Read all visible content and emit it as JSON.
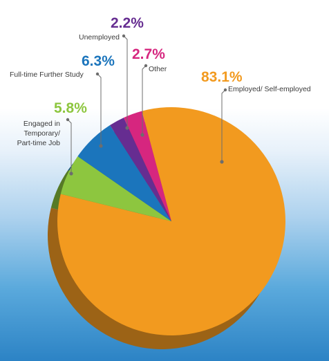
{
  "chart_data": {
    "type": "pie",
    "slices": [
      {
        "key": "employed",
        "label": "Employed/ Self-employed",
        "value": 83.1,
        "display": "83.1%",
        "color": "#f29a1f",
        "shade": "#9c6316"
      },
      {
        "key": "temporary",
        "label_lines": [
          "Engaged in",
          "Temporary/",
          "Part-time Job"
        ],
        "value": 5.8,
        "display": "5.8%",
        "color": "#8dc63f",
        "shade": "#567a26"
      },
      {
        "key": "further_study",
        "label": "Full-time Further Study",
        "value": 6.3,
        "display": "6.3%",
        "color": "#1b75bc",
        "shade": "#124c7a"
      },
      {
        "key": "unemployed",
        "label": "Unemployed",
        "value": 2.2,
        "display": "2.2%",
        "color": "#662d91",
        "shade": "#421d5e"
      },
      {
        "key": "other",
        "label": "Other",
        "value": 2.7,
        "display": "2.7%",
        "color": "#d6267f",
        "shade": "#8a1952"
      }
    ]
  }
}
